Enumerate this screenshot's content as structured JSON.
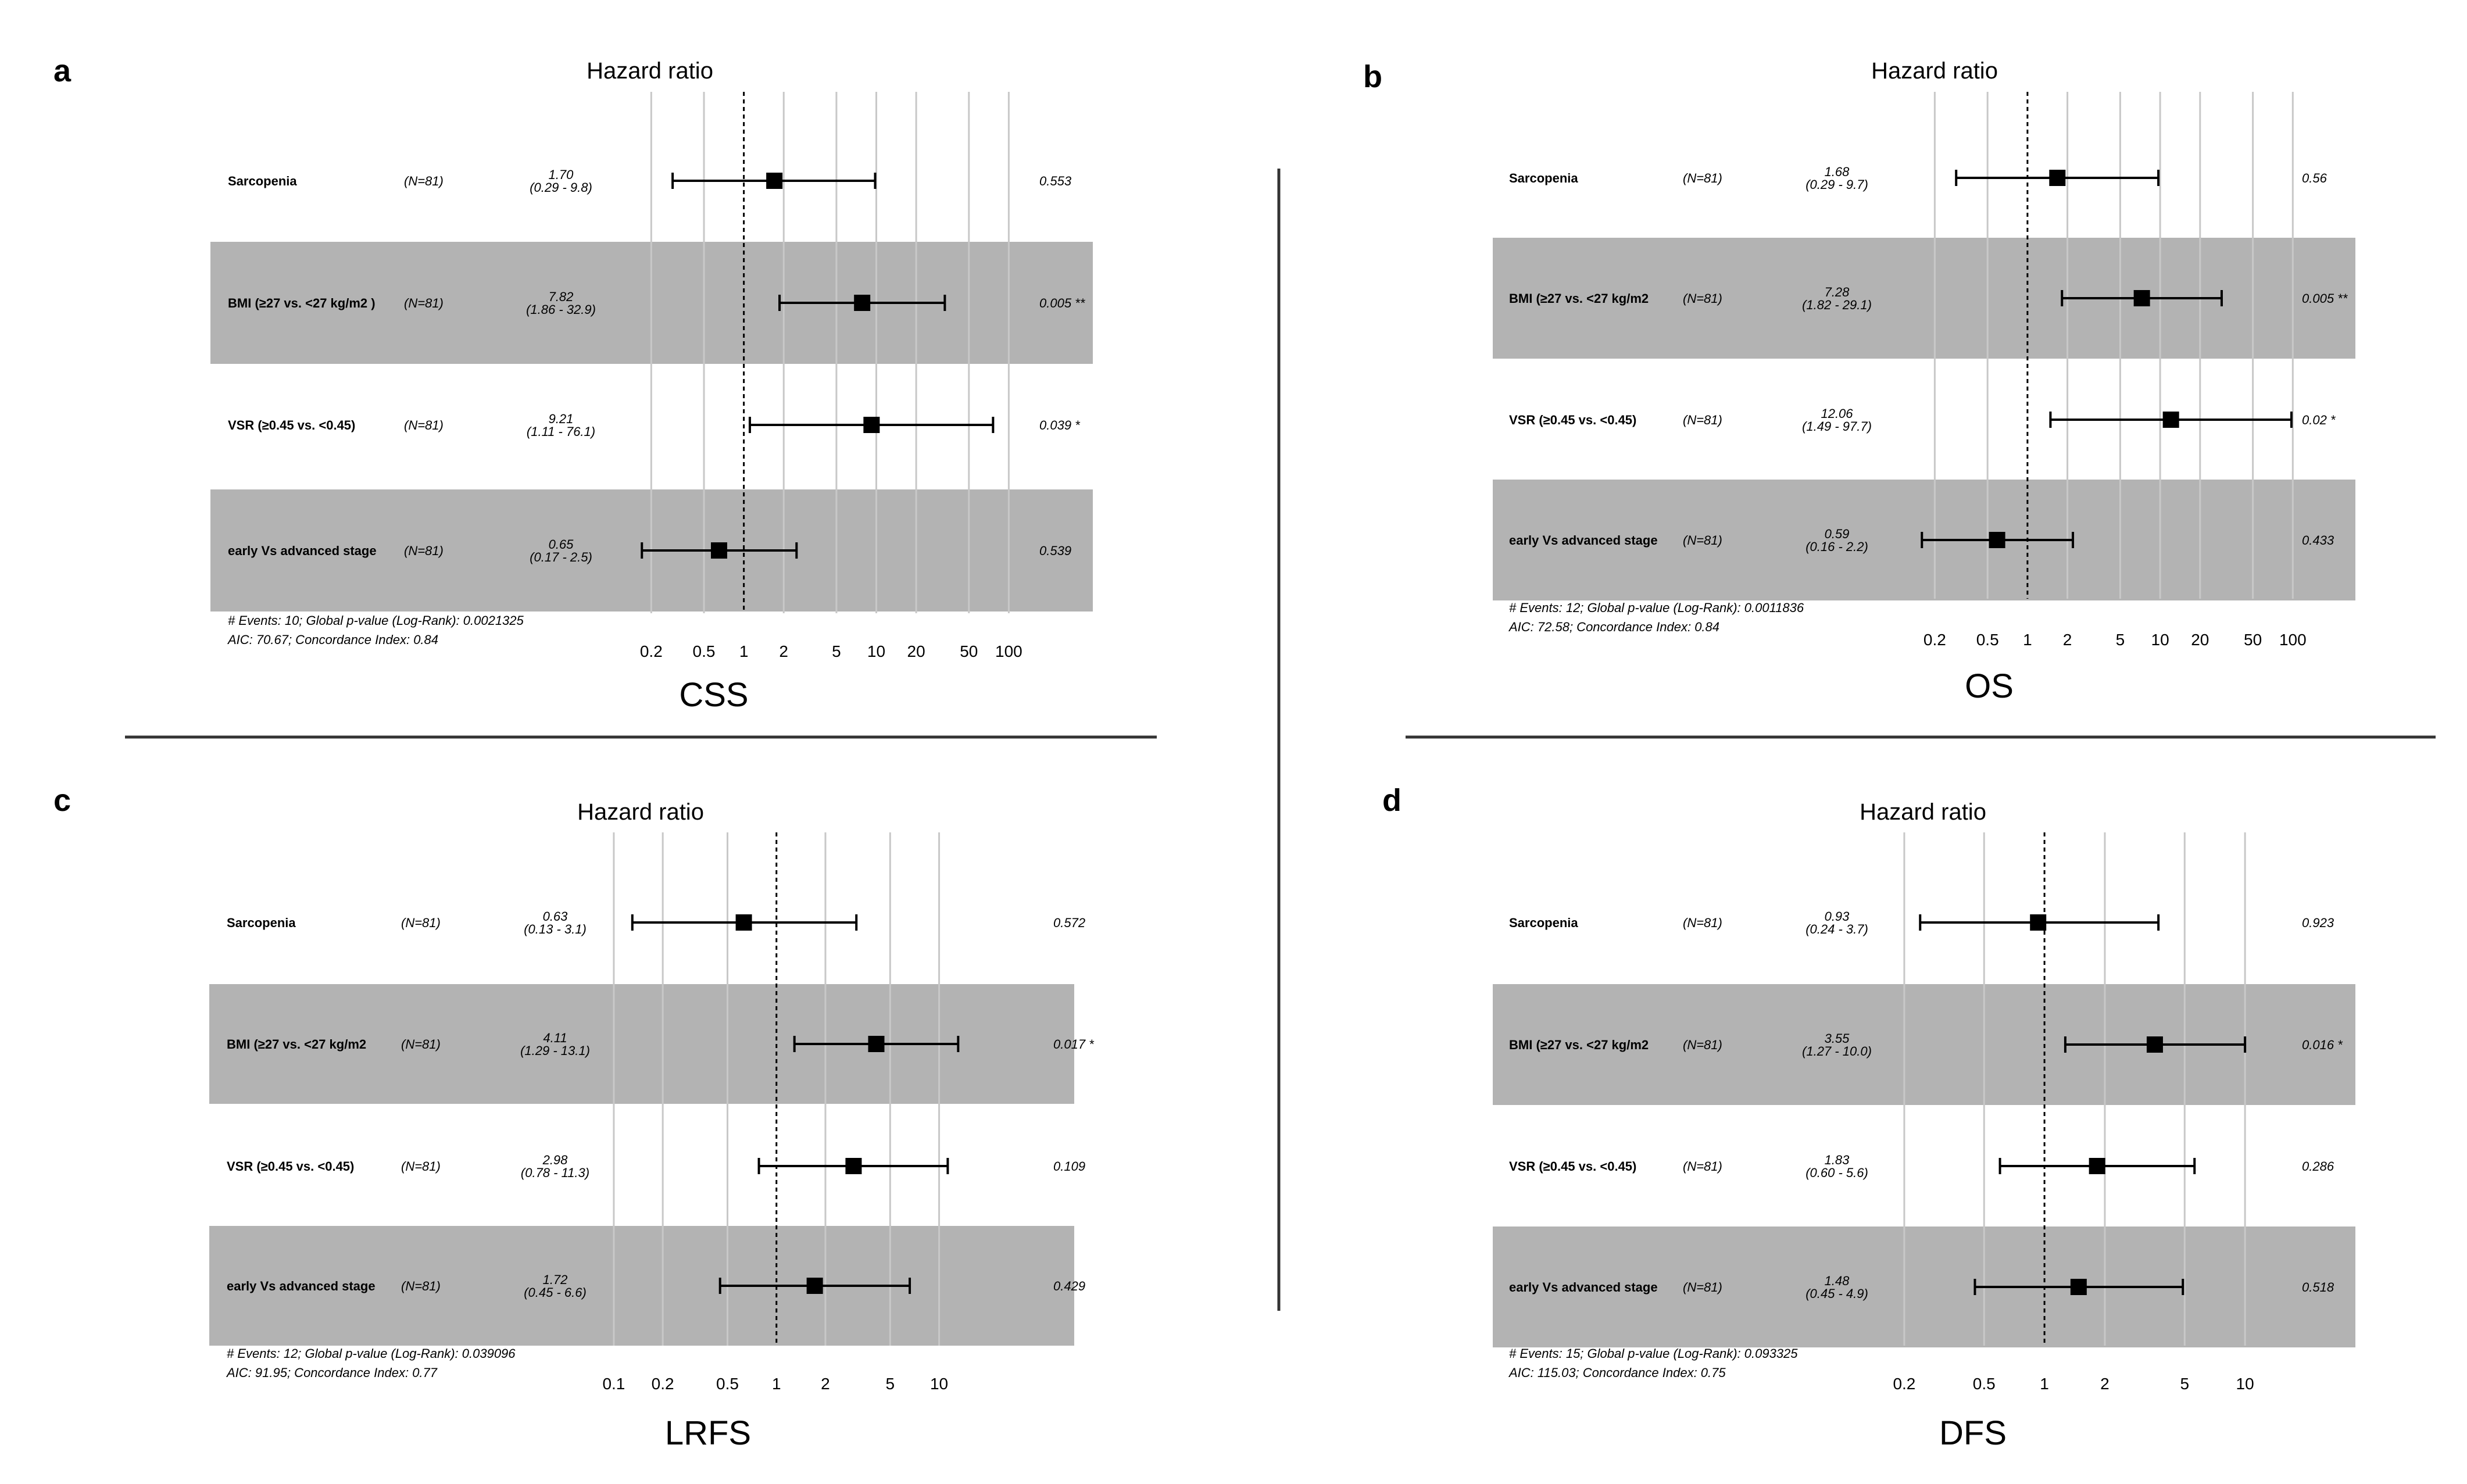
{
  "colors": {
    "band": "#b3b3b3",
    "grid": "#c8c8c8",
    "ink": "#000000"
  },
  "chart_data": [
    {
      "type": "forest",
      "panel": "a",
      "title": "Hazard ratio",
      "endpoint": "CSS",
      "xscale": "log",
      "xlim": [
        0.1472,
        200
      ],
      "ticks": [
        0.2,
        0.5,
        1,
        2,
        5,
        10,
        20,
        50,
        100
      ],
      "tick_labels": [
        "0.2",
        "0.5",
        "1",
        "2",
        "5",
        "10",
        "20",
        "50",
        "100"
      ],
      "rows": [
        {
          "label": "Sarcopenia",
          "n": "(N=81)",
          "est": "1.70",
          "ci": "(0.29 -  9.8)",
          "hr": 1.7,
          "lo": 0.29,
          "hi": 9.8,
          "p": "0.553",
          "shaded": false
        },
        {
          "label": "BMI (≥27 vs. <27 kg/m2 )",
          "n": "(N=81)",
          "est": "7.82",
          "ci": "(1.86 - 32.9)",
          "hr": 7.82,
          "lo": 1.86,
          "hi": 32.9,
          "p": "0.005 **",
          "shaded": true
        },
        {
          "label": "VSR (≥0.45 vs. <0.45)",
          "n": "(N=81)",
          "est": "9.21",
          "ci": "(1.11 - 76.1)",
          "hr": 9.21,
          "lo": 1.11,
          "hi": 76.1,
          "p": "0.039 *",
          "shaded": false
        },
        {
          "label": "early Vs advanced stage",
          "n": "(N=81)",
          "est": "0.65",
          "ci": "(0.17 -  2.5)",
          "hr": 0.65,
          "lo": 0.17,
          "hi": 2.5,
          "p": "0.539",
          "shaded": true
        }
      ],
      "footnote_1": "# Events: 10; Global p-value (Log-Rank): 0.0021325",
      "footnote_2": "AIC: 70.67; Concordance Index: 0.84"
    },
    {
      "type": "forest",
      "panel": "b",
      "title": "Hazard ratio",
      "endpoint": "OS",
      "xscale": "log",
      "xlim": [
        0.1472,
        200
      ],
      "ticks": [
        0.2,
        0.5,
        1,
        2,
        5,
        10,
        20,
        50,
        100
      ],
      "tick_labels": [
        "0.2",
        "0.5",
        "1",
        "2",
        "5",
        "10",
        "20",
        "50",
        "100"
      ],
      "rows": [
        {
          "label": "Sarcopenia",
          "n": "(N=81)",
          "est": "1.68",
          "ci": "(0.29 -  9.7)",
          "hr": 1.68,
          "lo": 0.29,
          "hi": 9.7,
          "p": "0.56",
          "shaded": false
        },
        {
          "label": "BMI (≥27 vs. <27 kg/m2",
          "n": "(N=81)",
          "est": "7.28",
          "ci": "(1.82 - 29.1)",
          "hr": 7.28,
          "lo": 1.82,
          "hi": 29.1,
          "p": "0.005 **",
          "shaded": true
        },
        {
          "label": "VSR (≥0.45 vs. <0.45)",
          "n": "(N=81)",
          "est": "12.06",
          "ci": "(1.49 - 97.7)",
          "hr": 12.06,
          "lo": 1.49,
          "hi": 97.7,
          "p": "0.02 *",
          "shaded": false
        },
        {
          "label": "early Vs advanced stage",
          "n": "(N=81)",
          "est": "0.59",
          "ci": "(0.16 -  2.2)",
          "hr": 0.59,
          "lo": 0.16,
          "hi": 2.2,
          "p": "0.433",
          "shaded": true
        }
      ],
      "footnote_1": "# Events: 12; Global p-value (Log-Rank): 0.0011836",
      "footnote_2": "AIC: 72.58; Concordance Index: 0.84"
    },
    {
      "type": "forest",
      "panel": "c",
      "title": "Hazard ratio",
      "endpoint": "LRFS",
      "xscale": "log",
      "xlim": [
        0.0738,
        21.4
      ],
      "ticks": [
        0.1,
        0.2,
        0.5,
        1,
        2,
        5,
        10
      ],
      "tick_labels": [
        "0.1",
        "0.2",
        "0.5",
        "1",
        "2",
        "5",
        "10"
      ],
      "rows": [
        {
          "label": "Sarcopenia",
          "n": "(N=81)",
          "est": "0.63",
          "ci": "(0.13 -  3.1)",
          "hr": 0.63,
          "lo": 0.13,
          "hi": 3.1,
          "p": "0.572",
          "shaded": false
        },
        {
          "label": "BMI (≥27 vs. <27 kg/m2",
          "n": "(N=81)",
          "est": "4.11",
          "ci": "(1.29 - 13.1)",
          "hr": 4.11,
          "lo": 1.29,
          "hi": 13.1,
          "p": "0.017 *",
          "shaded": true
        },
        {
          "label": "VSR (≥0.45 vs. <0.45)",
          "n": "(N=81)",
          "est": "2.98",
          "ci": "(0.78 - 11.3)",
          "hr": 2.98,
          "lo": 0.78,
          "hi": 11.3,
          "p": "0.109",
          "shaded": false
        },
        {
          "label": "early Vs advanced stage",
          "n": "(N=81)",
          "est": "1.72",
          "ci": "(0.45 -  6.6)",
          "hr": 1.72,
          "lo": 0.45,
          "hi": 6.6,
          "p": "0.429",
          "shaded": true
        }
      ],
      "footnote_1": "# Events: 12; Global p-value (Log-Rank): 0.039096",
      "footnote_2": "AIC: 91.95; Concordance Index: 0.77"
    },
    {
      "type": "forest",
      "panel": "d",
      "title": "Hazard ratio",
      "endpoint": "DFS",
      "xscale": "log",
      "xlim": [
        0.1472,
        20
      ],
      "ticks": [
        0.2,
        0.5,
        1,
        2,
        5,
        10
      ],
      "tick_labels": [
        "0.2",
        "0.5",
        "1",
        "2",
        "5",
        "10"
      ],
      "rows": [
        {
          "label": "Sarcopenia",
          "n": "(N=81)",
          "est": "0.93",
          "ci": "(0.24 -  3.7)",
          "hr": 0.93,
          "lo": 0.24,
          "hi": 3.7,
          "p": "0.923",
          "shaded": false
        },
        {
          "label": "BMI (≥27 vs. <27 kg/m2",
          "n": "(N=81)",
          "est": "3.55",
          "ci": "(1.27 - 10.0)",
          "hr": 3.55,
          "lo": 1.27,
          "hi": 10.0,
          "p": "0.016 *",
          "shaded": true
        },
        {
          "label": "VSR (≥0.45 vs. <0.45)",
          "n": "(N=81)",
          "est": "1.83",
          "ci": "(0.60 -  5.6)",
          "hr": 1.83,
          "lo": 0.6,
          "hi": 5.6,
          "p": "0.286",
          "shaded": false
        },
        {
          "label": "early Vs advanced stage",
          "n": "(N=81)",
          "est": "1.48",
          "ci": "(0.45 -  4.9)",
          "hr": 1.48,
          "lo": 0.45,
          "hi": 4.9,
          "p": "0.518",
          "shaded": true
        }
      ],
      "footnote_1": "# Events: 15; Global p-value (Log-Rank): 0.093325",
      "footnote_2": "AIC: 115.03; Concordance Index: 0.75"
    }
  ]
}
